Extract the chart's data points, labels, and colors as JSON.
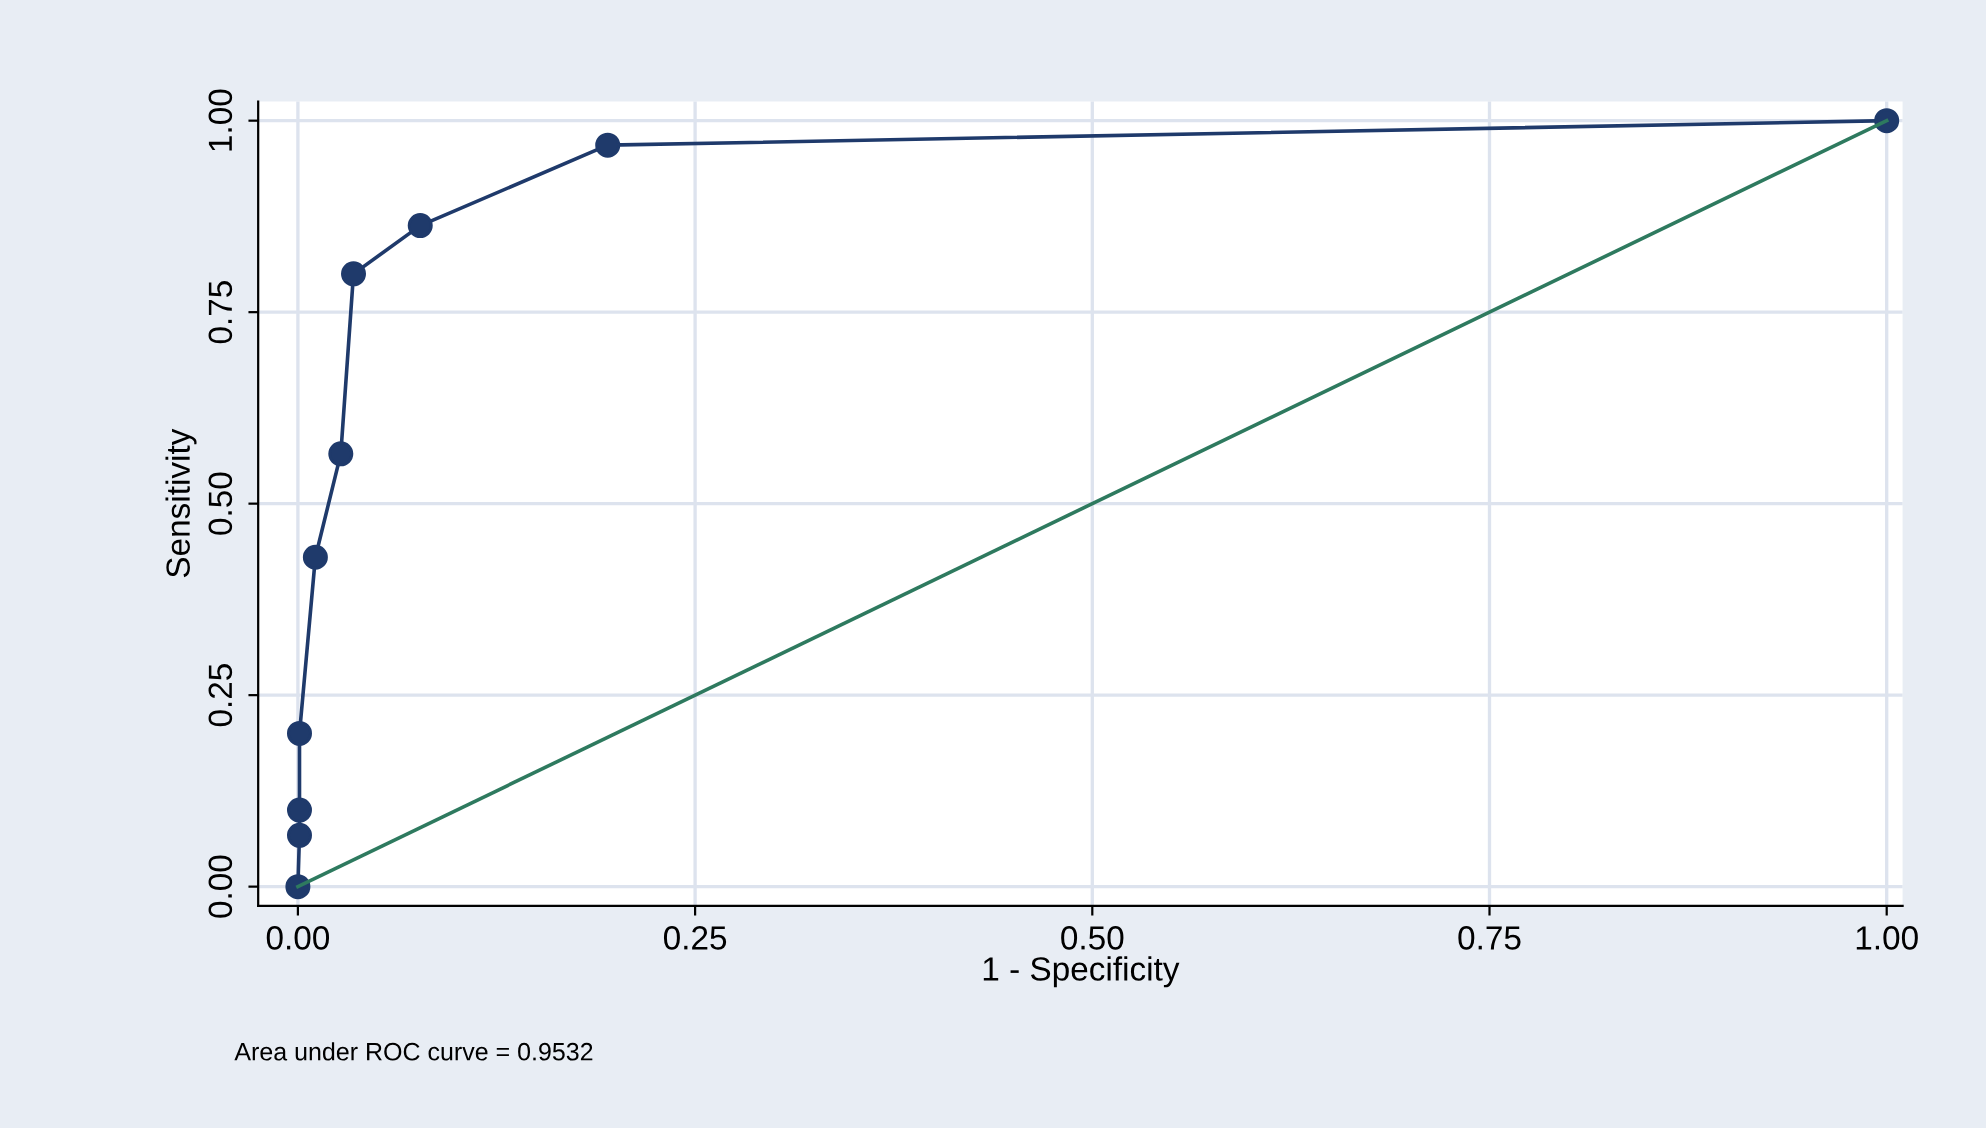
{
  "chart_data": {
    "type": "line",
    "xlabel": "1 - Specificity",
    "ylabel": "Sensitivity",
    "xlim": [
      -0.025,
      1.01
    ],
    "ylim": [
      -0.025,
      1.025
    ],
    "xticks": [
      {
        "value": 0,
        "label": "0.00"
      },
      {
        "value": 0.25,
        "label": "0.25"
      },
      {
        "value": 0.5,
        "label": "0.50"
      },
      {
        "value": 0.75,
        "label": "0.75"
      },
      {
        "value": 1,
        "label": "1.00"
      }
    ],
    "yticks": [
      {
        "value": 0,
        "label": "0.00"
      },
      {
        "value": 0.25,
        "label": "0.25"
      },
      {
        "value": 0.5,
        "label": "0.50"
      },
      {
        "value": 0.75,
        "label": "0.75"
      },
      {
        "value": 1,
        "label": "1.00"
      }
    ],
    "grid": true,
    "series": [
      {
        "x": [
          0,
          0.001,
          0.001,
          0.001,
          0.011,
          0.027,
          0.035,
          0.077,
          0.195,
          1
        ],
        "values": [
          0,
          0.067,
          0.1,
          0.2,
          0.43,
          0.565,
          0.8,
          0.863,
          0.968,
          1
        ],
        "color": "#1f3a6b",
        "marker": "circle"
      },
      {
        "x": [
          0,
          1
        ],
        "values": [
          0,
          1
        ],
        "color": "#2e7a5f",
        "marker": "none"
      }
    ],
    "annotations": [
      "Area under ROC curve = 0.9532"
    ]
  }
}
